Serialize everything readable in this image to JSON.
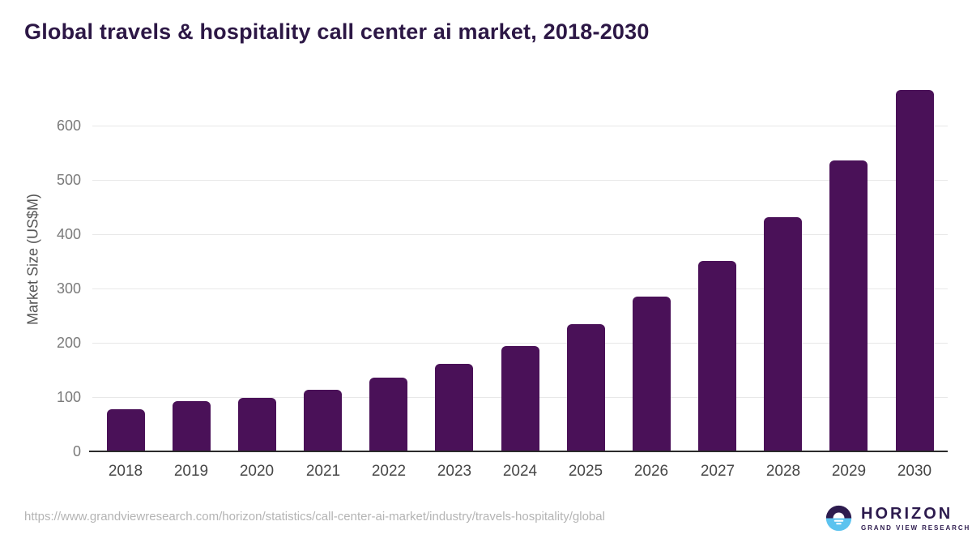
{
  "title": "Global travels & hospitality call center ai market, 2018-2030",
  "chart_data": {
    "type": "bar",
    "title": "Global travels & hospitality call center ai market, 2018-2030",
    "categories": [
      "2018",
      "2019",
      "2020",
      "2021",
      "2022",
      "2023",
      "2024",
      "2025",
      "2026",
      "2027",
      "2028",
      "2029",
      "2030"
    ],
    "values": [
      77,
      93,
      99,
      114,
      136,
      161,
      194,
      234,
      285,
      351,
      431,
      536,
      665
    ],
    "xlabel": "",
    "ylabel": "Market Size (US$M)",
    "ylim": [
      0,
      680
    ],
    "yticks": [
      0,
      100,
      200,
      300,
      400,
      500,
      600
    ],
    "grid": true,
    "legend": "none",
    "bar_color": "#4a1158"
  },
  "colors": {
    "bar": "#4a1158",
    "title": "#2c1745",
    "gridline": "#e8e8e8",
    "axis_line": "#2b2b2b",
    "tick_label": "#7a7a7a",
    "x_label": "#474747",
    "source_url": "#b4b4b4",
    "logo_purple": "#2d1b4e",
    "logo_blue": "#5cc3ef"
  },
  "footer": {
    "source_url": "https://www.grandviewresearch.com/horizon/statistics/call-center-ai-market/industry/travels-hospitality/global",
    "logo": {
      "name": "HORIZON",
      "subtitle": "GRAND VIEW RESEARCH"
    }
  }
}
